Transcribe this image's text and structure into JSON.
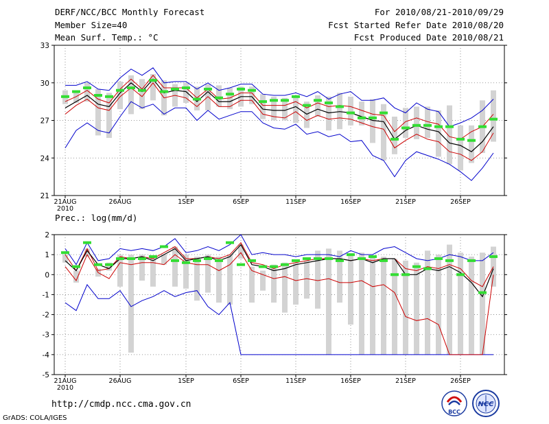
{
  "header": {
    "left_lines": [
      "DERF/NCC/BCC Monthly Forecast",
      "Member Size=40",
      "Mean Surf. Temp.: °C"
    ],
    "right_lines": [
      "For 2010/08/21-2010/09/29",
      "Fcst Started Refer Date 2010/08/20",
      "Fcst Produced Date 2010/08/21"
    ]
  },
  "panel2_title": "Prec.: log(mm/d)",
  "footer": {
    "url": "http://cmdp.ncc.cma.gov.cn",
    "credit": "GrADS: COLA/IGES"
  },
  "logos": [
    {
      "name": "bcc-logo",
      "text": "BCC"
    },
    {
      "name": "ncc-logo",
      "text": "NCC"
    }
  ],
  "colors": {
    "max_min": "#0000cc",
    "spread": "#cc0000",
    "mean": "#000000",
    "observed": "#33dd33",
    "box": "#d3d3d3"
  },
  "chart_data": [
    {
      "type": "line",
      "title": "Mean Surf. Temp.: °C",
      "x_tick_labels": [
        "21AUG\n2010",
        "26AUG",
        "1SEP",
        "6SEP",
        "11SEP",
        "16SEP",
        "21SEP",
        "26SEP"
      ],
      "x_tick_days": [
        1,
        6,
        12,
        17,
        22,
        27,
        32,
        37
      ],
      "x_range": [
        0,
        41
      ],
      "ylim": [
        21,
        33
      ],
      "yticks": [
        21,
        24,
        27,
        30,
        33
      ],
      "days": [
        1,
        2,
        3,
        4,
        5,
        6,
        7,
        8,
        9,
        10,
        11,
        12,
        13,
        14,
        15,
        16,
        17,
        18,
        19,
        20,
        21,
        22,
        23,
        24,
        25,
        26,
        27,
        28,
        29,
        30,
        31,
        32,
        33,
        34,
        35,
        36,
        37,
        38,
        39,
        40
      ],
      "series": [
        {
          "name": "max",
          "values": [
            29.8,
            29.8,
            30.1,
            29.5,
            29.4,
            30.4,
            31.1,
            30.6,
            31.2,
            30,
            30.1,
            30.1,
            29.5,
            30,
            29.4,
            29.6,
            29.9,
            29.9,
            29.1,
            29,
            29,
            29.2,
            28.9,
            29.3,
            28.7,
            29.1,
            29.3,
            28.6,
            28.6,
            28.8,
            28,
            27.6,
            28.4,
            27.9,
            27.7,
            26.5,
            26.8,
            27.2,
            27.8,
            28.7
          ]
        },
        {
          "name": "ens_upper",
          "values": [
            28.5,
            28.9,
            29.4,
            28.7,
            28.4,
            29.5,
            30.3,
            29.5,
            30.6,
            29.6,
            29.6,
            29.6,
            28.8,
            29.5,
            28.7,
            28.8,
            29.2,
            29.2,
            28.2,
            28.2,
            28.2,
            28.5,
            28,
            28.4,
            28.1,
            28.2,
            28.1,
            27.8,
            27.5,
            27.4,
            26.1,
            26.9,
            27.2,
            26.9,
            26.7,
            25.7,
            25.5,
            26.1,
            26.5,
            27.5
          ]
        },
        {
          "name": "mean",
          "values": [
            28,
            28.5,
            29,
            28.3,
            28.1,
            29.2,
            30,
            29.3,
            30.3,
            29.2,
            29.4,
            29.3,
            28.5,
            29.3,
            28.5,
            28.5,
            28.9,
            28.9,
            27.9,
            27.8,
            27.8,
            28.1,
            27.5,
            27.9,
            27.6,
            27.7,
            27.6,
            27.3,
            27,
            26.9,
            25.5,
            26.2,
            26.6,
            26.3,
            26.1,
            25.2,
            25,
            24.5,
            25.3,
            26.5
          ]
        },
        {
          "name": "ens_lower",
          "values": [
            27.5,
            28.2,
            28.7,
            28,
            27.8,
            28.9,
            29.6,
            28.9,
            30,
            28.8,
            29,
            28.8,
            28.1,
            28.9,
            28.1,
            28.1,
            28.6,
            28.6,
            27.5,
            27.3,
            27.2,
            27.7,
            27,
            27.4,
            27.1,
            27.2,
            27.1,
            26.8,
            26.5,
            26.3,
            24.8,
            25.4,
            25.9,
            25.5,
            25.3,
            24.5,
            24.3,
            23.8,
            24.5,
            26
          ]
        },
        {
          "name": "min",
          "values": [
            24.8,
            26.2,
            26.8,
            26.2,
            26,
            27.3,
            28.5,
            28,
            28.3,
            27.5,
            28,
            28,
            27,
            27.8,
            27.1,
            27.4,
            27.7,
            27.7,
            26.8,
            26.4,
            26.3,
            26.7,
            25.9,
            26.1,
            25.7,
            25.9,
            25.3,
            25.4,
            24.2,
            23.8,
            22.5,
            23.8,
            24.5,
            24.2,
            23.9,
            23.5,
            22.9,
            22.2,
            23.2,
            24.4
          ]
        },
        {
          "name": "box_top",
          "values": [
            29.4,
            29.4,
            30,
            29.5,
            29.2,
            30.1,
            30.6,
            30.3,
            30.7,
            30.2,
            29.9,
            30,
            29.7,
            29.9,
            29.8,
            29.6,
            29.7,
            29.7,
            29.1,
            28.9,
            28.8,
            29,
            28.5,
            29,
            28.9,
            29.2,
            28.9,
            28.5,
            28.7,
            28.3,
            27.3,
            28,
            28.1,
            28.1,
            27.8,
            28.2,
            26.6,
            26.6,
            28.6,
            29.4
          ]
        },
        {
          "name": "box_bottom",
          "values": [
            28.3,
            28.4,
            28.5,
            25.8,
            25.6,
            27.9,
            27.5,
            27.9,
            28.6,
            27.4,
            28.1,
            28.4,
            27.8,
            27.8,
            28.1,
            27.9,
            28.1,
            28.3,
            27.1,
            27,
            27,
            26.8,
            26.4,
            27.3,
            26.2,
            26.3,
            26.6,
            26.6,
            25.2,
            23.8,
            24.3,
            25.6,
            25.5,
            25.6,
            24.1,
            23.5,
            23,
            23.6,
            24.4,
            25.3
          ]
        },
        {
          "name": "observed",
          "values": [
            28.9,
            29.3,
            29.6,
            29,
            28.9,
            29.4,
            29.6,
            29.4,
            30.2,
            29.3,
            29.5,
            29.6,
            28.7,
            29.5,
            28.8,
            29.1,
            29.5,
            29.4,
            28.5,
            28.6,
            28.6,
            28.9,
            28.2,
            28.6,
            28.4,
            28.1,
            27.6,
            27.2,
            27.2,
            27.6,
            25.5,
            26.4,
            26.6,
            26.6,
            26.5,
            26.5,
            25.5,
            25.4,
            26.5,
            27.1
          ]
        }
      ]
    },
    {
      "type": "line",
      "title": "Prec.: log(mm/d)",
      "x_tick_labels": [
        "21AUG\n2010",
        "26AUG",
        "1SEP",
        "6SEP",
        "11SEP",
        "16SEP",
        "21SEP",
        "26SEP"
      ],
      "x_tick_days": [
        1,
        6,
        12,
        17,
        22,
        27,
        32,
        37
      ],
      "x_range": [
        0,
        41
      ],
      "ylim": [
        -5,
        2
      ],
      "yticks": [
        -5,
        -4,
        -3,
        -2,
        -1,
        0,
        1,
        2
      ],
      "days": [
        1,
        2,
        3,
        4,
        5,
        6,
        7,
        8,
        9,
        10,
        11,
        12,
        13,
        14,
        15,
        16,
        17,
        18,
        19,
        20,
        21,
        22,
        23,
        24,
        25,
        26,
        27,
        28,
        29,
        30,
        31,
        32,
        33,
        34,
        35,
        36,
        37,
        38,
        39,
        40
      ],
      "series": [
        {
          "name": "max",
          "values": [
            1.3,
            0.5,
            1.6,
            0.7,
            0.8,
            1.3,
            1.2,
            1.3,
            1.2,
            1.4,
            1.8,
            1.1,
            1.2,
            1.4,
            1.2,
            1.5,
            2,
            1,
            1.1,
            1,
            1,
            0.9,
            1,
            1,
            1,
            0.9,
            1.2,
            1,
            1,
            1.3,
            1.4,
            1.1,
            0.8,
            0.7,
            0.8,
            1,
            0.9,
            0.7,
            0.7,
            1.1
          ]
        },
        {
          "name": "ens_upper",
          "values": [
            1,
            0.2,
            1.3,
            0.2,
            0.3,
            0.9,
            0.8,
            0.9,
            0.8,
            1.1,
            1.4,
            0.8,
            0.8,
            0.9,
            0.8,
            1,
            1.6,
            0.6,
            0.5,
            0.3,
            0.5,
            0.6,
            0.7,
            0.8,
            0.8,
            0.8,
            0.7,
            0.8,
            0.7,
            0.8,
            0.8,
            0.3,
            0.2,
            0.4,
            0.3,
            0.5,
            0.3,
            -0.3,
            -0.6,
            0.4
          ]
        },
        {
          "name": "mean",
          "values": [
            0.7,
            0.2,
            1.2,
            0.5,
            0.3,
            0.8,
            0.8,
            0.9,
            0.7,
            1,
            1.3,
            0.7,
            0.8,
            0.9,
            0.7,
            0.9,
            1.5,
            0.5,
            0.4,
            0.2,
            0.3,
            0.5,
            0.6,
            0.7,
            0.8,
            0.8,
            0.7,
            0.8,
            0.6,
            0.8,
            0.8,
            0,
            0,
            0.3,
            0.2,
            0.4,
            0.1,
            -0.4,
            -1.1,
            0.3
          ]
        },
        {
          "name": "ens_lower",
          "values": [
            0.4,
            -0.3,
            1,
            0.1,
            -0.2,
            0.6,
            0.5,
            0.6,
            0.6,
            0.5,
            1,
            0.6,
            0.5,
            0.5,
            0.2,
            0.5,
            1.1,
            0.2,
            0,
            -0.2,
            -0.1,
            -0.3,
            -0.2,
            -0.3,
            -0.2,
            -0.4,
            -0.4,
            -0.3,
            -0.6,
            -0.5,
            -0.9,
            -2.1,
            -2.3,
            -2.2,
            -2.5,
            -4,
            -4,
            -4,
            -4,
            0
          ]
        },
        {
          "name": "min",
          "values": [
            -1.4,
            -1.8,
            -0.5,
            -1.2,
            -1.2,
            -0.8,
            -1.6,
            -1.3,
            -1.1,
            -0.8,
            -1.1,
            -0.9,
            -0.8,
            -1.6,
            -2,
            -1.4,
            -4,
            -4,
            -4,
            -4,
            -4,
            -4,
            -4,
            -4,
            -4,
            -4,
            -4,
            -4,
            -4,
            -4,
            -4,
            -4,
            -4,
            -4,
            -4,
            -4,
            -4,
            -4,
            -4,
            -4
          ]
        },
        {
          "name": "box_top",
          "values": [
            1,
            0.2,
            1.3,
            0.3,
            0.6,
            1,
            1,
            1,
            0.9,
            1,
            1.4,
            1,
            0.9,
            1,
            0.9,
            1,
            1.5,
            0.4,
            0.2,
            0.5,
            0.6,
            0.6,
            0.7,
            1.2,
            1.3,
            1.2,
            1,
            1.1,
            0.9,
            0.9,
            0.8,
            0.7,
            0.6,
            1.2,
            1,
            1.5,
            1.1,
            0.9,
            1.1,
            1.4
          ]
        },
        {
          "name": "box_bottom",
          "values": [
            0.6,
            -0.4,
            0.9,
            -0.1,
            0.2,
            -0.6,
            -3.9,
            -0.3,
            -0.6,
            0.5,
            -0.6,
            -0.7,
            -1.3,
            -0.9,
            -1.4,
            -1.5,
            0.8,
            -1.4,
            -0.8,
            -1.4,
            -1.9,
            -1.5,
            -1.2,
            -1.7,
            -4,
            -1.4,
            -2.5,
            -4,
            -4,
            -4,
            -4,
            -4,
            -4,
            -4,
            -4,
            -4,
            -4,
            -4,
            -4,
            -0.6
          ]
        },
        {
          "name": "observed",
          "values": [
            1.1,
            0.4,
            1.6,
            0.5,
            0.5,
            0.8,
            0.8,
            0.8,
            0.9,
            1.4,
            0.7,
            0.6,
            0.7,
            0.8,
            0.7,
            1.6,
            0.5,
            0.7,
            0.4,
            0.4,
            0.5,
            0.7,
            0.8,
            0.8,
            0.8,
            0.7,
            1,
            0.8,
            0.9,
            0.7,
            0,
            0,
            0.4,
            0.3,
            0.8,
            0.7,
            0,
            0.7,
            -0.9,
            0.9
          ]
        }
      ]
    }
  ]
}
